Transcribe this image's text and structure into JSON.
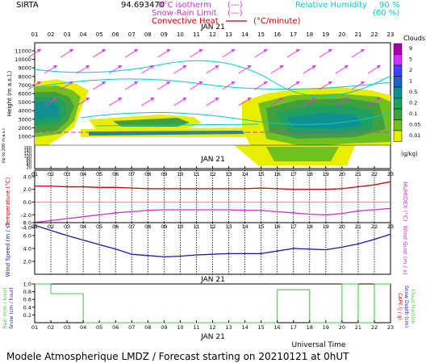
{
  "header": {
    "site": "SIRTA",
    "coord": "94.693470",
    "legend_isotherm": "0°C isotherm",
    "legend_isotherm_dash": "(---)",
    "legend_snow": "Snow-Rain Limit",
    "legend_snow_dash": "(---)",
    "legend_conv": "Convective Heat",
    "legend_conv_unit": "(°C/minute)",
    "legend_rh": "Relative Humidity",
    "rh_90": "90 %",
    "rh_60": "(60 %)"
  },
  "axes": {
    "hours": [
      "01",
      "02",
      "03",
      "04",
      "05",
      "06",
      "07",
      "08",
      "09",
      "10",
      "11",
      "12",
      "13",
      "14",
      "15",
      "16",
      "17",
      "18",
      "19",
      "20",
      "21",
      "22",
      "23"
    ],
    "date": "JAN 21",
    "xlabel": "Universal Time"
  },
  "footer": "Modele Atmospherique LMDZ / Forecast starting on 20210121 at 0hUT",
  "colors": {
    "accent_red": "#cc0000",
    "accent_magenta": "#cc33cc",
    "accent_blue": "#1a1aaa",
    "accent_green": "#44cc44",
    "accent_cyan": "#00cccc"
  },
  "chart_data": [
    {
      "type": "heatmap",
      "title": "",
      "ylabel": "Height (m a.s.l.)",
      "ylabel2": "Up to 200 m a.s.l.",
      "yticks": [
        1000,
        2000,
        3000,
        4000,
        5000,
        6000,
        7000,
        8000,
        9000,
        10000,
        11000
      ],
      "yticks_low": [
        20,
        40,
        60,
        80,
        100,
        120,
        140,
        160
      ],
      "colorbar": {
        "label": "Clouds",
        "unit": "(g/kg)",
        "ticks": [
          "9",
          "5",
          "2",
          "1",
          "0.5",
          "0.2",
          "0.1",
          "0.05",
          "0.01"
        ],
        "colors": [
          "#aa00aa",
          "#cc33ff",
          "#4040ff",
          "#2060c0",
          "#109090",
          "#20a060",
          "#40a040",
          "#70c020",
          "#e8ee00"
        ]
      }
    },
    {
      "type": "line",
      "ylabel": "Temperature (°C)",
      "ylabel2": "HUMIDEX (°C)",
      "yticks": [
        -4.0,
        -2.0,
        0.0,
        2.0,
        4.0
      ],
      "ylim": [
        -5,
        5
      ],
      "x": [
        1,
        2,
        3,
        4,
        5,
        6,
        7,
        8,
        9,
        10,
        11,
        12,
        13,
        14,
        15,
        16,
        17,
        18,
        19,
        20,
        21,
        22,
        23
      ],
      "series": [
        {
          "name": "Temperature",
          "values": [
            2.5,
            2.5,
            2.4,
            2.4,
            2.3,
            2.3,
            2.2,
            2.1,
            2.1,
            2.1,
            2.1,
            2.1,
            2.1,
            2.1,
            2.2,
            2.1,
            2.0,
            2.0,
            2.0,
            2.1,
            2.4,
            2.7,
            3.2
          ]
        },
        {
          "name": "HUMIDEX",
          "values": [
            -3.2,
            -2.9,
            -2.6,
            -2.3,
            -2.0,
            -1.7,
            -1.5,
            -1.3,
            -1.2,
            -1.2,
            -1.2,
            -1.2,
            -1.2,
            -1.3,
            -1.3,
            -1.5,
            -1.7,
            -1.9,
            -2.0,
            -1.8,
            -1.4,
            -1.2,
            -1.0
          ]
        }
      ]
    },
    {
      "type": "line",
      "ylabel": "Wind Speed (m / s)",
      "ylabel2": "Wind Gust (m / s)",
      "yticks": [
        2.0,
        4.0,
        6.0,
        8.0
      ],
      "ylim": [
        0,
        8
      ],
      "x": [
        1,
        2,
        3,
        4,
        5,
        6,
        7,
        8,
        9,
        10,
        11,
        12,
        13,
        14,
        15,
        16,
        17,
        18,
        19,
        20,
        21,
        22,
        23
      ],
      "series": [
        {
          "name": "Wind Speed",
          "values": [
            7.6,
            6.8,
            6.0,
            5.3,
            4.6,
            3.9,
            3.1,
            2.9,
            2.7,
            2.8,
            3.0,
            3.1,
            3.2,
            3.2,
            3.2,
            3.6,
            4.0,
            3.9,
            3.8,
            4.2,
            4.7,
            5.4,
            6.2
          ]
        }
      ]
    },
    {
      "type": "bar",
      "ylabel": "Rain (mm / hour)",
      "ylabel_b": "Snow (cm / hour)",
      "ylabel2": "CAPE (J / g)",
      "ylabel2_b": "Snow Depth (cm)",
      "ylabel2_c": "Cloud Fraction",
      "yticks": [
        0.2,
        0.4,
        0.6,
        0.8,
        1.0
      ],
      "ylim": [
        0,
        1
      ],
      "x": [
        1,
        2,
        3,
        4,
        5,
        6,
        7,
        8,
        9,
        10,
        11,
        12,
        13,
        14,
        15,
        16,
        17,
        18,
        19,
        20,
        21,
        22,
        23
      ],
      "series": [
        {
          "name": "Cloud Fraction",
          "values": [
            1.0,
            0.75,
            0.75,
            0,
            0,
            0,
            0,
            0,
            0,
            0,
            0,
            0,
            0,
            0,
            0,
            0.85,
            0.85,
            0,
            0,
            1.0,
            0,
            1.0,
            1.0
          ]
        }
      ]
    }
  ]
}
